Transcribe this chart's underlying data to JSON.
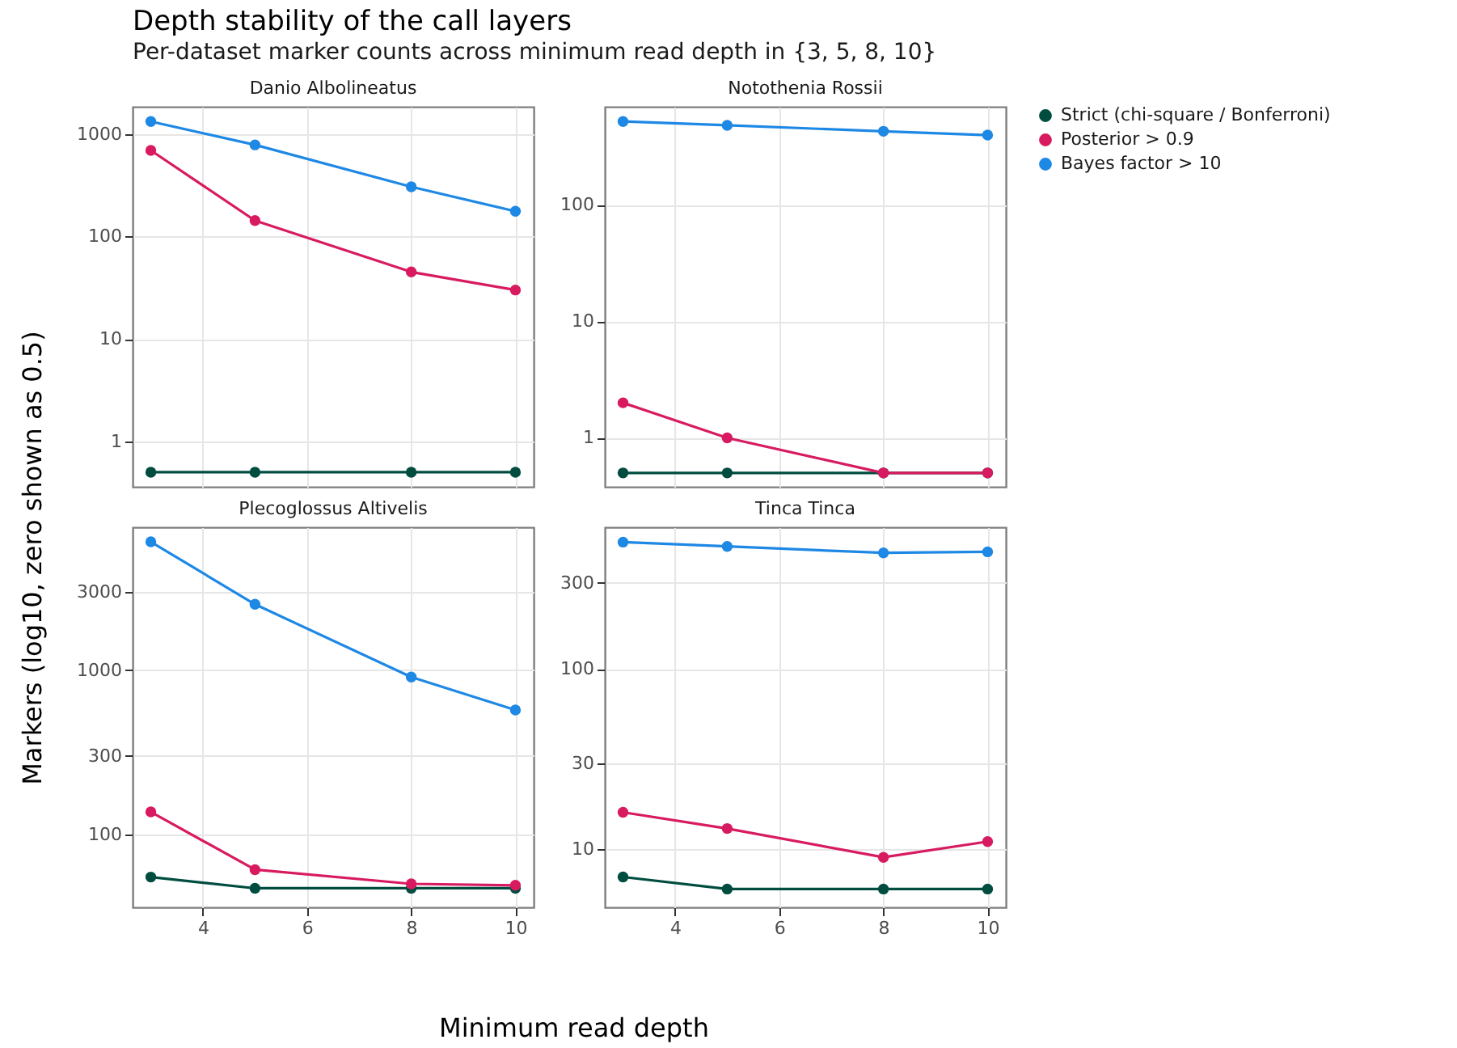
{
  "chart_data": [
    {
      "type": "line",
      "title": "Danio Albolineatus",
      "annotations": [
        "Depth stability of the call layers",
        "Per-dataset marker counts across minimum read depth in {3, 5, 8, 10}"
      ],
      "ylabel": "Markers (log10, zero shown as 0.5)",
      "x": [
        3,
        5,
        8,
        10
      ],
      "log": true,
      "grid": true,
      "marker": "circle",
      "legend": "right",
      "tick_labels": "y",
      "xlim": [
        2.65,
        10.35
      ],
      "xticks": [
        4,
        6,
        8,
        10
      ],
      "ylim": [
        0.36,
        1845
      ],
      "yticks": [
        1,
        10,
        100,
        1000
      ],
      "series": [
        {
          "name": "Strict (chi-square / Bonferroni)",
          "color": "#004d40",
          "values": [
            0.5,
            0.5,
            0.5,
            0.5
          ]
        },
        {
          "name": "Posterior > 0.9",
          "color": "#d81b60",
          "values": [
            692,
            143,
            45,
            30
          ]
        },
        {
          "name": "Bayes factor > 10",
          "color": "#1e88e5",
          "values": [
            1325,
            783,
            305,
            176
          ]
        }
      ]
    },
    {
      "type": "line",
      "title": "Notothenia Rossii",
      "x": [
        3,
        5,
        8,
        10
      ],
      "log": true,
      "grid": true,
      "marker": "circle",
      "tick_labels": "y",
      "xlim": [
        2.65,
        10.35
      ],
      "xticks": [
        4,
        6,
        8,
        10
      ],
      "ylim": [
        0.38,
        697
      ],
      "yticks": [
        1,
        10,
        100
      ],
      "series": [
        {
          "color": "#004d40",
          "values": [
            0.5,
            0.5,
            0.5,
            0.5
          ]
        },
        {
          "color": "#d81b60",
          "values": [
            2,
            1,
            0.5,
            0.5
          ]
        },
        {
          "color": "#1e88e5",
          "values": [
            521,
            483,
            429,
            398
          ]
        }
      ]
    },
    {
      "type": "line",
      "title": "Plecoglossus Altivelis",
      "xlabel": "Minimum read depth",
      "x": [
        3,
        5,
        8,
        10
      ],
      "log": true,
      "grid": true,
      "marker": "circle",
      "xlim": [
        2.65,
        10.35
      ],
      "xticks": [
        4,
        6,
        8,
        10
      ],
      "ylim": [
        36,
        7400
      ],
      "yticks": [
        100,
        300,
        1000,
        3000
      ],
      "series": [
        {
          "color": "#004d40",
          "values": [
            55,
            47,
            47,
            47
          ]
        },
        {
          "color": "#d81b60",
          "values": [
            137,
            61,
            50,
            49
          ]
        },
        {
          "color": "#1e88e5",
          "values": [
            6030,
            2513,
            907,
            572
          ]
        }
      ]
    },
    {
      "type": "line",
      "title": "Tinca Tinca",
      "x": [
        3,
        5,
        8,
        10
      ],
      "log": true,
      "grid": true,
      "marker": "circle",
      "xlim": [
        2.65,
        10.35
      ],
      "xticks": [
        4,
        6,
        8,
        10
      ],
      "ylim": [
        4.75,
        612
      ],
      "yticks": [
        10,
        30,
        100,
        300
      ],
      "series": [
        {
          "color": "#004d40",
          "values": [
            7,
            6,
            6,
            6
          ]
        },
        {
          "color": "#d81b60",
          "values": [
            16,
            13,
            9,
            11
          ]
        },
        {
          "color": "#1e88e5",
          "values": [
            506,
            479,
            441,
            447
          ]
        }
      ]
    }
  ]
}
